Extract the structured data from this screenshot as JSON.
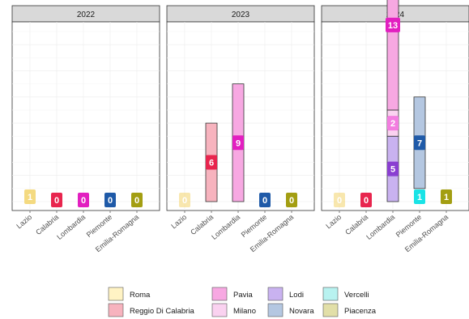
{
  "chart_data": {
    "type": "bar",
    "stacked": true,
    "facet_by": "year",
    "panels": [
      "2022",
      "2023",
      "2024"
    ],
    "categories": [
      "Lazio",
      "Calabria",
      "Lombardia",
      "Piemonte",
      "Emilia-Romagna"
    ],
    "ylim": [
      0,
      15
    ],
    "grid": true,
    "legend_position": "bottom",
    "legend": [
      {
        "name": "Roma",
        "color": "#FFF3C4"
      },
      {
        "name": "Reggio Di Calabria",
        "color": "#F7B3BE"
      },
      {
        "name": "Pavia",
        "color": "#F7A8E2"
      },
      {
        "name": "Milano",
        "color": "#FAD2F0"
      },
      {
        "name": "Lodi",
        "color": "#C9B2F0"
      },
      {
        "name": "Novara",
        "color": "#B4C7E1"
      },
      {
        "name": "Vercelli",
        "color": "#B8F2F0"
      },
      {
        "name": "Piacenza",
        "color": "#E2DFA8"
      }
    ],
    "region_colors": {
      "Lazio": "#F2D46B",
      "Calabria": "#E8254E",
      "Lombardia": "#E21FC0",
      "Piemonte": "#1F5AA8",
      "Emilia-Romagna": "#A39E12"
    },
    "segments": [
      {
        "panel": "2022",
        "category": "Lazio",
        "province": "Roma",
        "value": 1,
        "color": "#F2D46B"
      },
      {
        "panel": "2023",
        "category": "Calabria",
        "province": "Reggio Di Calabria",
        "value": 6,
        "color": "#E8254E"
      },
      {
        "panel": "2023",
        "category": "Lombardia",
        "province": "Pavia",
        "value": 9,
        "color": "#E21FC0"
      },
      {
        "panel": "2024",
        "category": "Lombardia",
        "province": "Lodi",
        "value": 5,
        "color": "#8A3FD1"
      },
      {
        "panel": "2024",
        "category": "Lombardia",
        "province": "Milano",
        "value": 2,
        "color": "#F37DE0"
      },
      {
        "panel": "2024",
        "category": "Lombardia",
        "province": "Pavia",
        "value": 13,
        "color": "#E21FC0"
      },
      {
        "panel": "2024",
        "category": "Piemonte",
        "province": "Vercelli",
        "value": 1,
        "color": "#19E3E6"
      },
      {
        "panel": "2024",
        "category": "Piemonte",
        "province": "Novara",
        "value": 7,
        "color": "#1F5AA8"
      },
      {
        "panel": "2024",
        "category": "Emilia-Romagna",
        "province": "Piacenza",
        "value": 1,
        "color": "#A39E12"
      }
    ],
    "zero_labels": [
      {
        "panel": "2022",
        "category": "Calabria",
        "value": 0
      },
      {
        "panel": "2022",
        "category": "Lombardia",
        "value": 0
      },
      {
        "panel": "2022",
        "category": "Piemonte",
        "value": 0
      },
      {
        "panel": "2022",
        "category": "Emilia-Romagna",
        "value": 0
      },
      {
        "panel": "2023",
        "category": "Lazio",
        "value": 0
      },
      {
        "panel": "2023",
        "category": "Piemonte",
        "value": 0
      },
      {
        "panel": "2023",
        "category": "Emilia-Romagna",
        "value": 0
      },
      {
        "panel": "2024",
        "category": "Lazio",
        "value": 0
      },
      {
        "panel": "2024",
        "category": "Calabria",
        "value": 0
      }
    ]
  }
}
